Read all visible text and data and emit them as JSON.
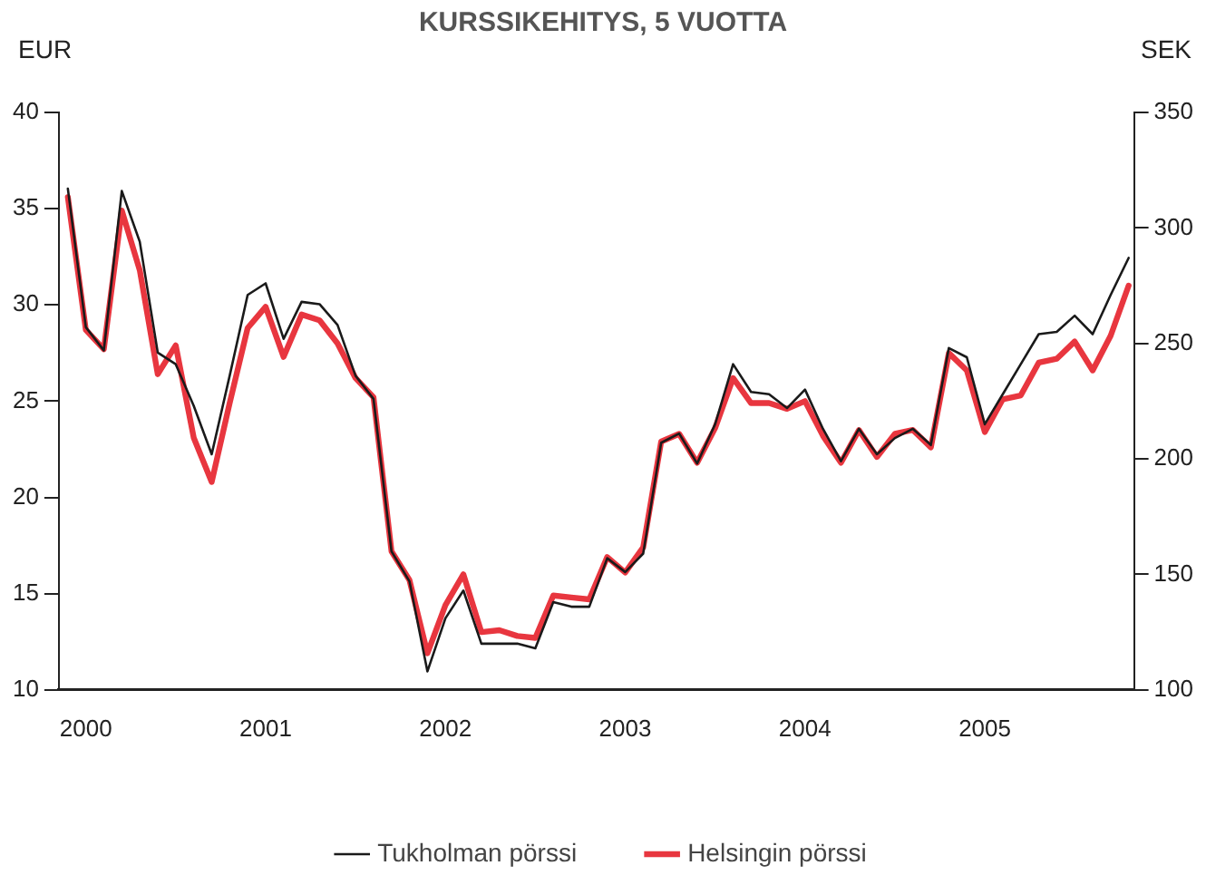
{
  "chart_data": {
    "type": "line",
    "title": "KURSSIKEHITYS, 5 VUOTTA",
    "ylabel": "EUR",
    "y2label": "SEK",
    "x": [
      1999.9,
      2000.0,
      2000.1,
      2000.2,
      2000.3,
      2000.4,
      2000.5,
      2000.6,
      2000.7,
      2000.8,
      2000.9,
      2001.0,
      2001.1,
      2001.2,
      2001.3,
      2001.4,
      2001.5,
      2001.6,
      2001.7,
      2001.8,
      2001.9,
      2002.0,
      2002.1,
      2002.2,
      2002.3,
      2002.4,
      2002.5,
      2002.6,
      2002.7,
      2002.8,
      2002.9,
      2003.0,
      2003.1,
      2003.2,
      2003.3,
      2003.4,
      2003.5,
      2003.6,
      2003.7,
      2003.8,
      2003.9,
      2004.0,
      2004.1,
      2004.2,
      2004.3,
      2004.4,
      2004.5,
      2004.6,
      2004.7,
      2004.8,
      2004.9,
      2005.0,
      2005.1,
      2005.2,
      2005.3,
      2005.4,
      2005.5,
      2005.6,
      2005.7,
      2005.8
    ],
    "series": [
      {
        "name": "Helsingin pörssi",
        "color": "#e8363f",
        "values": [
          35.6,
          28.7,
          27.7,
          34.9,
          31.8,
          26.4,
          27.9,
          23.1,
          20.8,
          24.9,
          28.8,
          29.9,
          27.3,
          29.5,
          29.2,
          28.0,
          26.2,
          25.2,
          17.2,
          15.7,
          11.9,
          14.4,
          16.0,
          13.0,
          13.1,
          12.8,
          12.7,
          14.9,
          14.8,
          14.7,
          16.9,
          16.1,
          17.4,
          22.9,
          23.3,
          21.8,
          23.6,
          26.2,
          24.9,
          24.9,
          24.6,
          25.0,
          23.2,
          21.8,
          23.5,
          22.1,
          23.3,
          23.5,
          22.6,
          27.5,
          26.6,
          23.4,
          25.1,
          25.3,
          27.0,
          27.2,
          28.1,
          26.6,
          28.4,
          31.0
        ]
      },
      {
        "name": "Tukholman pörssi",
        "color": "#1a1a1a",
        "axis": "y2",
        "values": [
          317,
          257,
          247,
          316,
          294,
          246,
          241,
          223,
          202,
          236,
          271,
          276,
          252,
          268,
          267,
          258,
          236,
          226,
          160,
          147,
          108,
          131,
          143,
          120,
          120,
          120,
          118,
          138,
          136,
          136,
          157,
          151,
          159,
          207,
          211,
          198,
          215,
          241,
          229,
          228,
          222,
          230,
          213,
          199,
          213,
          202,
          209,
          213,
          206,
          248,
          244,
          215,
          228,
          241,
          254,
          255,
          262,
          254,
          271,
          287
        ]
      }
    ],
    "xlim": [
      1999.85,
      2005.83
    ],
    "xticks": [
      2000,
      2001,
      2002,
      2003,
      2004,
      2005
    ],
    "ylim": [
      10,
      40
    ],
    "yticks": [
      10,
      15,
      20,
      25,
      30,
      35,
      40
    ],
    "y2lim": [
      100,
      350
    ],
    "y2ticks": [
      100,
      150,
      200,
      250,
      300,
      350
    ],
    "grid": false,
    "legend": "bottom",
    "marker": "none",
    "line_style": "solid"
  }
}
